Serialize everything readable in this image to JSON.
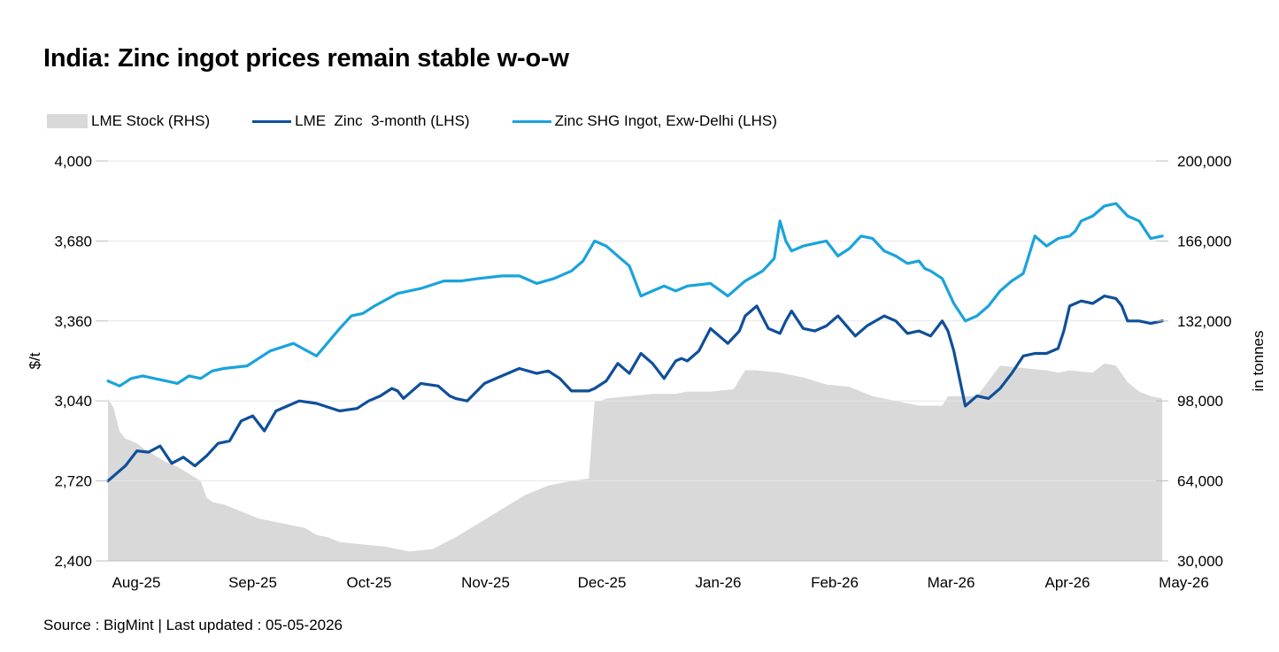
{
  "title": "India: Zinc ingot prices remain stable w-o-w",
  "source": "Source : BigMint | Last updated : 05-05-2026",
  "colors": {
    "stock": "#d9d9d9",
    "lme": "#0f4f9a",
    "shg": "#1aa3dc",
    "axis": "#bfbfbf"
  },
  "chart_data": {
    "type": "line",
    "x_labels": [
      "Aug-25",
      "Sep-25",
      "Oct-25",
      "Nov-25",
      "Dec-25",
      "Jan-26",
      "Feb-26",
      "Mar-26",
      "Apr-26",
      "May-26"
    ],
    "left_axis": {
      "label": "$/t",
      "ylim": [
        2400,
        4000
      ],
      "ticks": [
        "2,400",
        "2,720",
        "3,040",
        "3,360",
        "3,680",
        "4,000"
      ],
      "tick_values": [
        2400,
        2720,
        3040,
        3360,
        3680,
        4000
      ]
    },
    "right_axis": {
      "label": "in tonnes",
      "ylim": [
        30000,
        200000
      ],
      "ticks": [
        "30,000",
        "64,000",
        "98,000",
        "132,000",
        "166,000",
        "200,000"
      ],
      "tick_values": [
        30000,
        64000,
        98000,
        132000,
        166000,
        200000
      ]
    },
    "legend": {
      "position": "top-left"
    },
    "series": [
      {
        "name": "LME Stock (RHS)",
        "kind": "area",
        "axis": "right",
        "x": [
          0,
          0.05,
          0.1,
          0.15,
          0.2,
          0.25,
          0.3,
          0.4,
          0.5,
          0.6,
          0.7,
          0.8,
          0.85,
          0.9,
          1.0,
          1.1,
          1.2,
          1.3,
          1.4,
          1.5,
          1.6,
          1.7,
          1.8,
          1.9,
          2.0,
          2.2,
          2.4,
          2.6,
          2.8,
          3.0,
          3.2,
          3.4,
          3.6,
          3.8,
          4.0,
          4.15,
          4.2,
          4.25,
          4.3,
          4.5,
          4.7,
          4.9,
          5.0,
          5.2,
          5.4,
          5.5,
          5.6,
          5.8,
          6.0,
          6.2,
          6.4,
          6.6,
          6.8,
          7.0,
          7.2,
          7.25,
          7.3,
          7.5,
          7.7,
          7.9,
          8.1,
          8.2,
          8.3,
          8.5,
          8.6,
          8.7,
          8.8,
          8.9,
          9.0,
          9.1
        ],
        "values": [
          99000,
          95000,
          85000,
          82000,
          81000,
          80000,
          78000,
          75000,
          72000,
          70000,
          67000,
          64000,
          57000,
          55000,
          54000,
          52000,
          50000,
          48000,
          47000,
          46000,
          45000,
          44000,
          41000,
          40000,
          38000,
          37000,
          36000,
          34000,
          35000,
          40000,
          46000,
          52000,
          58000,
          62000,
          64000,
          65000,
          98000,
          98000,
          99000,
          100000,
          101000,
          101000,
          102000,
          102000,
          103000,
          111000,
          111000,
          110000,
          108000,
          105000,
          104000,
          100000,
          98000,
          96000,
          96000,
          100000,
          100000,
          100000,
          113000,
          112000,
          111000,
          110000,
          111000,
          110000,
          114000,
          113000,
          106000,
          102000,
          100000,
          99000
        ],
        "color": "#d9d9d9"
      },
      {
        "name": "LME  Zinc  3-month (LHS)",
        "kind": "line",
        "axis": "left",
        "x": [
          0,
          0.15,
          0.25,
          0.35,
          0.45,
          0.55,
          0.65,
          0.75,
          0.85,
          0.95,
          1.05,
          1.15,
          1.25,
          1.35,
          1.45,
          1.55,
          1.65,
          1.8,
          2.0,
          2.15,
          2.25,
          2.35,
          2.45,
          2.5,
          2.55,
          2.7,
          2.85,
          2.95,
          3.0,
          3.1,
          3.25,
          3.4,
          3.55,
          3.7,
          3.8,
          3.9,
          4.0,
          4.15,
          4.2,
          4.3,
          4.4,
          4.5,
          4.6,
          4.7,
          4.8,
          4.9,
          4.95,
          5.0,
          5.1,
          5.2,
          5.35,
          5.45,
          5.5,
          5.6,
          5.7,
          5.8,
          5.85,
          5.9,
          6.0,
          6.1,
          6.2,
          6.3,
          6.45,
          6.55,
          6.7,
          6.8,
          6.9,
          7.0,
          7.1,
          7.2,
          7.25,
          7.3,
          7.35,
          7.4,
          7.5,
          7.6,
          7.7,
          7.8,
          7.9,
          8.0,
          8.1,
          8.2,
          8.25,
          8.3,
          8.4,
          8.5,
          8.6,
          8.7,
          8.75,
          8.8,
          8.9,
          9.0,
          9.1
        ],
        "values": [
          2720,
          2780,
          2840,
          2835,
          2860,
          2790,
          2815,
          2780,
          2820,
          2870,
          2880,
          2960,
          2980,
          2920,
          3000,
          3020,
          3040,
          3030,
          3000,
          3010,
          3040,
          3060,
          3090,
          3080,
          3050,
          3110,
          3100,
          3060,
          3050,
          3040,
          3110,
          3140,
          3170,
          3150,
          3160,
          3130,
          3080,
          3080,
          3090,
          3120,
          3190,
          3150,
          3230,
          3190,
          3130,
          3200,
          3210,
          3200,
          3240,
          3330,
          3270,
          3320,
          3380,
          3420,
          3330,
          3310,
          3360,
          3400,
          3330,
          3320,
          3340,
          3380,
          3300,
          3340,
          3380,
          3360,
          3310,
          3320,
          3300,
          3360,
          3320,
          3240,
          3130,
          3020,
          3060,
          3050,
          3090,
          3150,
          3220,
          3230,
          3230,
          3250,
          3320,
          3420,
          3440,
          3430,
          3460,
          3450,
          3420,
          3360,
          3360,
          3350,
          3360
        ],
        "color": "#0f4f9a"
      },
      {
        "name": "Zinc SHG Ingot, Exw-Delhi (LHS)",
        "kind": "line",
        "axis": "left",
        "x": [
          0,
          0.1,
          0.2,
          0.3,
          0.4,
          0.5,
          0.6,
          0.7,
          0.8,
          0.9,
          1.0,
          1.2,
          1.4,
          1.6,
          1.8,
          2.0,
          2.1,
          2.2,
          2.3,
          2.5,
          2.7,
          2.9,
          3.05,
          3.2,
          3.4,
          3.55,
          3.7,
          3.85,
          4.0,
          4.1,
          4.2,
          4.3,
          4.4,
          4.5,
          4.6,
          4.7,
          4.8,
          4.9,
          5.0,
          5.2,
          5.35,
          5.5,
          5.65,
          5.75,
          5.8,
          5.85,
          5.9,
          6.0,
          6.1,
          6.2,
          6.3,
          6.4,
          6.5,
          6.6,
          6.7,
          6.8,
          6.9,
          7.0,
          7.05,
          7.1,
          7.2,
          7.3,
          7.4,
          7.5,
          7.6,
          7.7,
          7.8,
          7.9,
          8.0,
          8.1,
          8.2,
          8.3,
          8.35,
          8.4,
          8.5,
          8.6,
          8.7,
          8.8,
          8.9,
          9.0,
          9.1
        ],
        "values": [
          3120,
          3100,
          3130,
          3140,
          3130,
          3120,
          3110,
          3140,
          3130,
          3160,
          3170,
          3180,
          3240,
          3270,
          3220,
          3330,
          3380,
          3390,
          3420,
          3470,
          3490,
          3520,
          3520,
          3530,
          3540,
          3540,
          3510,
          3530,
          3560,
          3600,
          3680,
          3660,
          3620,
          3580,
          3460,
          3480,
          3500,
          3480,
          3500,
          3510,
          3460,
          3520,
          3560,
          3610,
          3760,
          3680,
          3640,
          3660,
          3670,
          3680,
          3620,
          3650,
          3700,
          3690,
          3640,
          3620,
          3590,
          3600,
          3570,
          3560,
          3530,
          3430,
          3360,
          3380,
          3420,
          3480,
          3520,
          3550,
          3700,
          3660,
          3690,
          3700,
          3720,
          3760,
          3780,
          3820,
          3830,
          3780,
          3760,
          3690,
          3700
        ],
        "color": "#1aa3dc"
      }
    ]
  }
}
